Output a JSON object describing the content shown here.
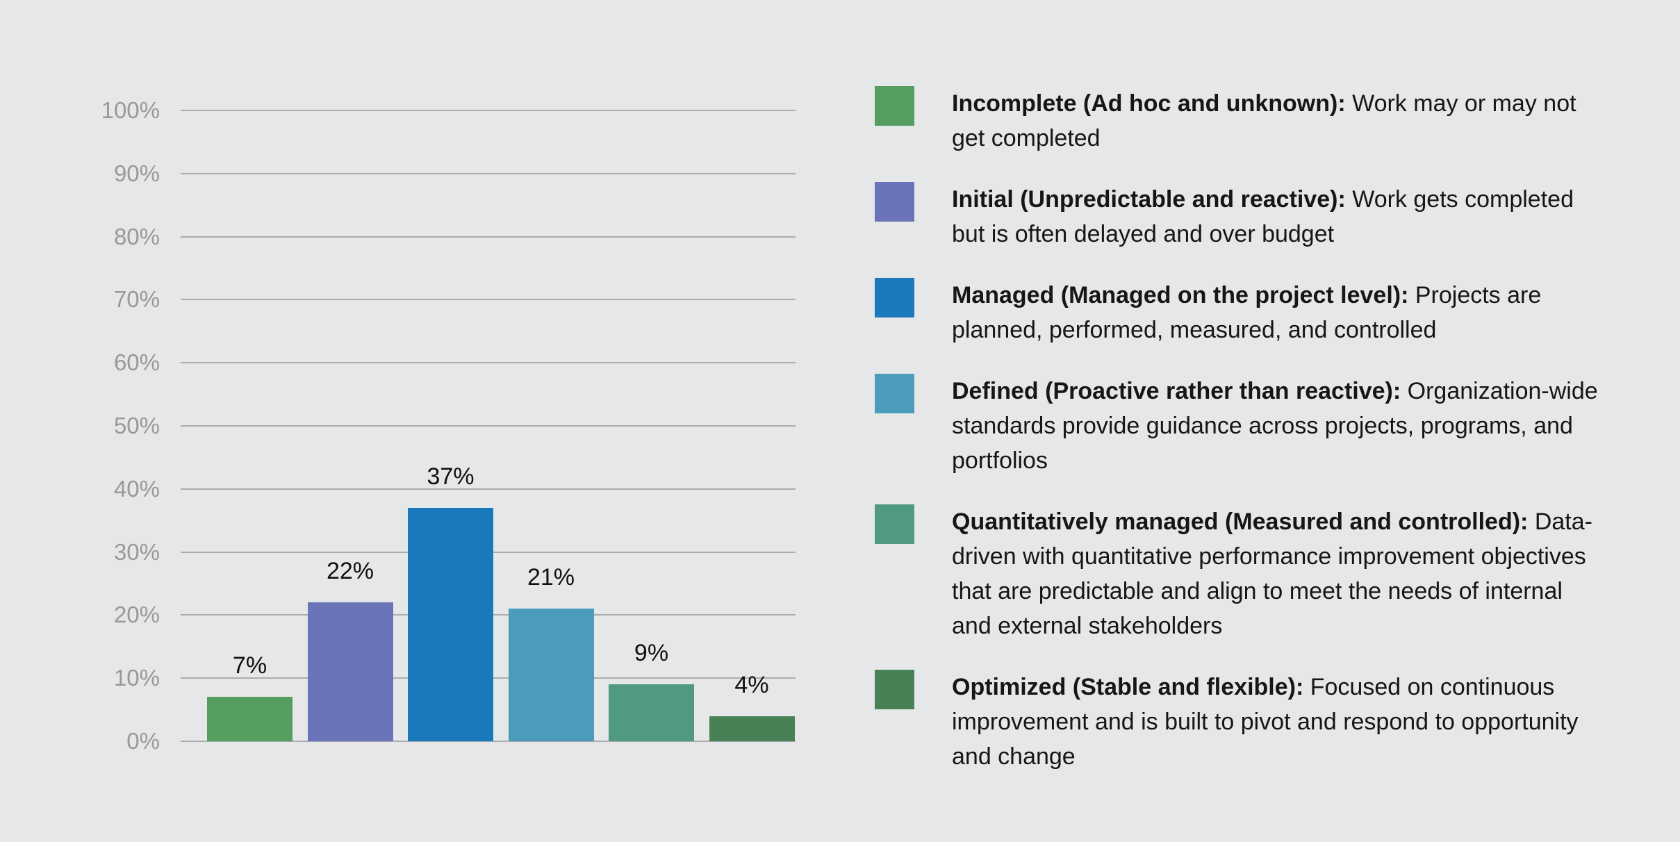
{
  "background_color": "#e6e7e8",
  "chart": {
    "gridline_color": "#aaacad",
    "tick_label_color": "#98999b",
    "value_label_color": "#111111",
    "y_tick_values": [
      0,
      10,
      20,
      30,
      40,
      50,
      60,
      70,
      80,
      90,
      100
    ],
    "y_tick_labels": [
      "0%",
      "10%",
      "20%",
      "30%",
      "40%",
      "50%",
      "60%",
      "70%",
      "80%",
      "90%",
      "100%"
    ]
  },
  "chart_data": {
    "type": "bar",
    "categories": [
      "Incomplete (Ad hoc and unknown)",
      "Initial (Unpredictable and reactive)",
      "Managed (Managed on the project level)",
      "Defined (Proactive rather than reactive)",
      "Quantitatively managed (Measured and controlled)",
      "Optimized (Stable and flexible)"
    ],
    "values": [
      7,
      22,
      37,
      21,
      9,
      4
    ],
    "value_labels": [
      "7%",
      "22%",
      "37%",
      "21%",
      "9%",
      "4%"
    ],
    "bar_colors": [
      "#569e5f",
      "#6b74b8",
      "#1979bb",
      "#4b9cbb",
      "#4f9a80",
      "#488156"
    ],
    "title": "",
    "xlabel": "",
    "ylabel": "",
    "ylim": [
      0,
      100
    ],
    "grid": true,
    "legend_position": "right"
  },
  "legend": {
    "items": [
      {
        "color": "#569e5f",
        "term": "Incomplete (Ad hoc and unknown):",
        "description": "Work may or may not get completed"
      },
      {
        "color": "#6b74b8",
        "term": "Initial (Unpredictable and reactive):",
        "description": "Work gets completed but is often delayed and over budget"
      },
      {
        "color": "#1979bb",
        "term": "Managed (Managed on the project level):",
        "description": "Projects are planned, performed, measured, and controlled"
      },
      {
        "color": "#4b9cbb",
        "term": "Defined (Proactive rather than reactive):",
        "description": "Organization-wide standards provide guidance across projects, programs, and portfolios"
      },
      {
        "color": "#4f9a80",
        "term": "Quantitatively managed (Measured and controlled):",
        "description": "Data-driven with quantitative performance improvement objectives that are predictable and align to meet the needs of internal and external stakeholders"
      },
      {
        "color": "#488156",
        "term": "Optimized (Stable and flexible):",
        "description": "Focused on continuous improvement and is built to pivot and respond to opportunity and change"
      }
    ]
  }
}
